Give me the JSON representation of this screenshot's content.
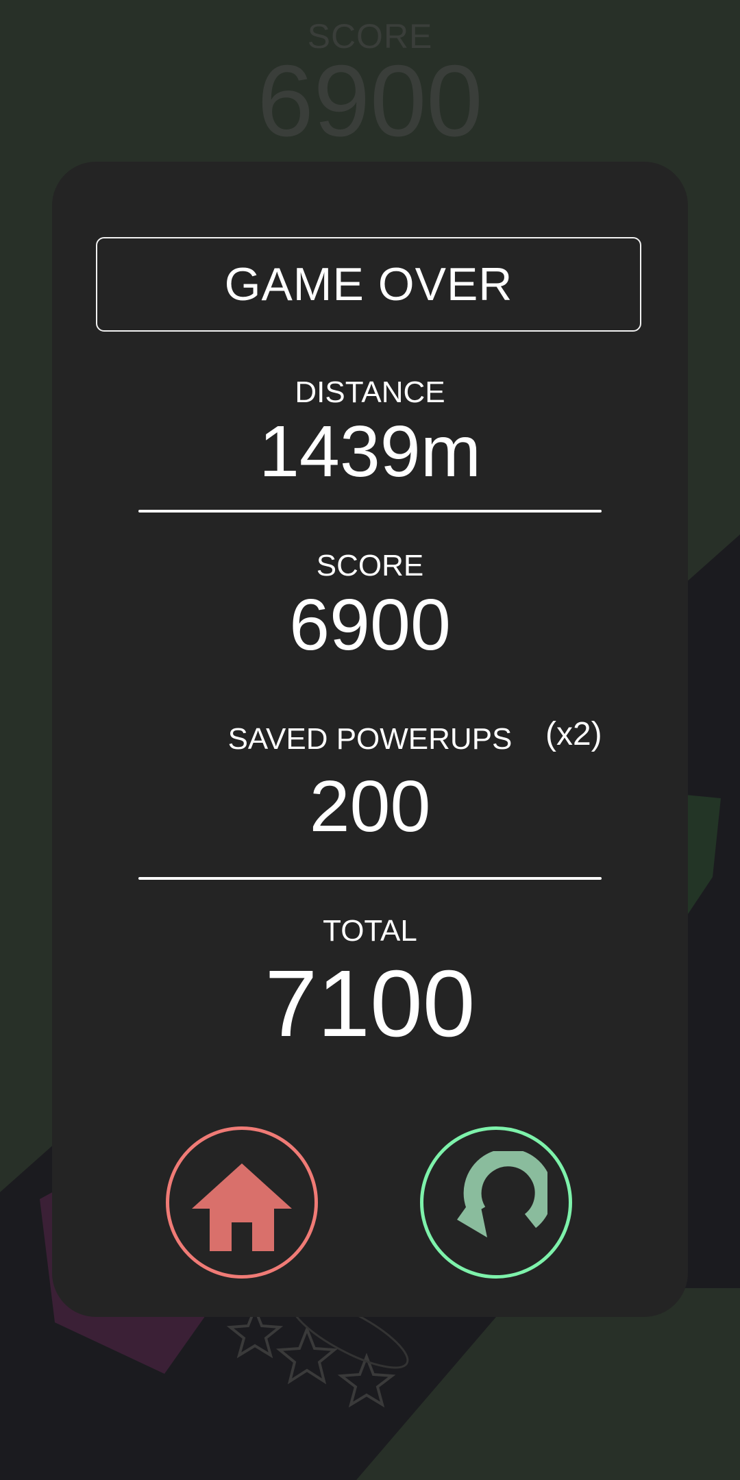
{
  "hud": {
    "score_label": "SCORE",
    "score_value": "6900"
  },
  "panel": {
    "title": "GAME OVER",
    "distance": {
      "label": "DISTANCE",
      "value": "1439m"
    },
    "score": {
      "label": "SCORE",
      "value": "6900"
    },
    "powerups": {
      "label": "SAVED POWERUPS",
      "multiplier": "(x2)",
      "value": "200"
    },
    "total": {
      "label": "TOTAL",
      "value": "7100"
    }
  },
  "buttons": {
    "home": {
      "icon": "home-icon",
      "color": "#f07b76",
      "fill": "#d9706b"
    },
    "restart": {
      "icon": "restart-icon",
      "color": "#7ef2ab",
      "fill": "#8abc9d"
    }
  },
  "colors": {
    "background": "#283028",
    "panel": "#242424",
    "text": "#ffffff"
  }
}
